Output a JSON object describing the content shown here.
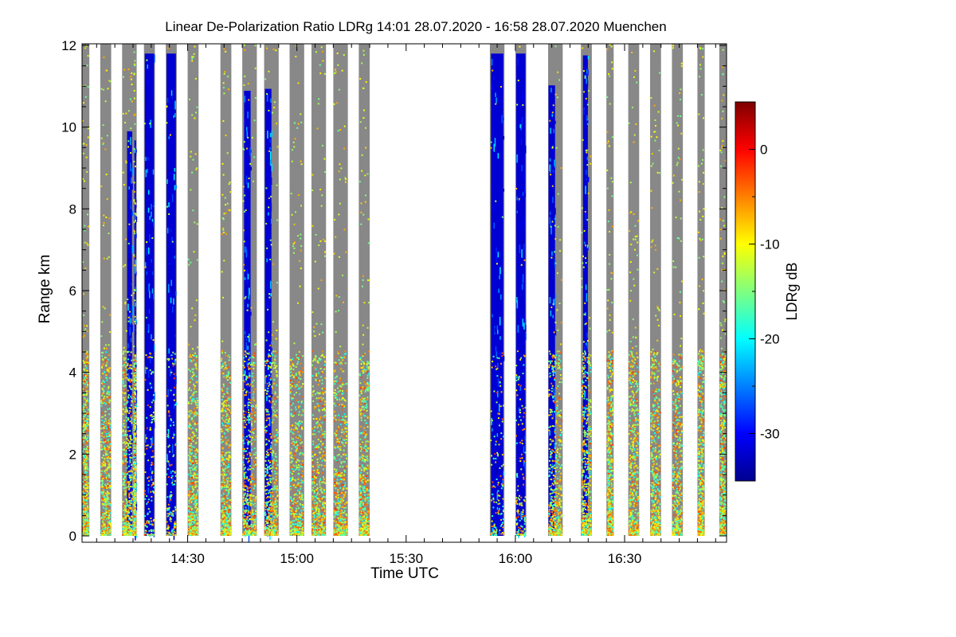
{
  "chart_data": {
    "type": "heatmap",
    "title": "Linear De-Polarization Ratio LDRg   14:01 28.07.2020 - 16:58 28.07.2020 Muenchen",
    "xlabel": "Time UTC",
    "ylabel": "Range km",
    "xlim": [
      "14:01",
      "16:58"
    ],
    "ylim": [
      0,
      12
    ],
    "x_ticks": [
      "14:30",
      "15:00",
      "15:30",
      "16:00",
      "16:30"
    ],
    "y_ticks": [
      "0",
      "2",
      "4",
      "6",
      "8",
      "10",
      "12"
    ],
    "colorbar": {
      "label": "LDRg dB",
      "range": [
        -35,
        5
      ],
      "ticks": [
        "0",
        "-10",
        "-20",
        "-30"
      ],
      "colormap": "jet"
    },
    "colors": {
      "no_signal": "#888888",
      "background": "#ffffff"
    },
    "profiles": [
      {
        "start": "14:01",
        "end": "14:03",
        "kind": "noise"
      },
      {
        "start": "14:06",
        "end": "14:09",
        "kind": "noise"
      },
      {
        "start": "14:12",
        "end": "14:15",
        "kind": "noise-cloud"
      },
      {
        "start": "14:15",
        "end": "14:16",
        "kind": "noise-cloud"
      },
      {
        "start": "14:18",
        "end": "14:21",
        "kind": "cloud"
      },
      {
        "start": "14:24",
        "end": "14:27",
        "kind": "cloud"
      },
      {
        "start": "14:30",
        "end": "14:33",
        "kind": "noise"
      },
      {
        "start": "14:39",
        "end": "14:42",
        "kind": "noise"
      },
      {
        "start": "14:45",
        "end": "14:49",
        "kind": "noise-cloud"
      },
      {
        "start": "14:51",
        "end": "14:55",
        "kind": "noise-cloud"
      },
      {
        "start": "14:58",
        "end": "15:02",
        "kind": "noise"
      },
      {
        "start": "15:04",
        "end": "15:08",
        "kind": "noise"
      },
      {
        "start": "15:10",
        "end": "15:14",
        "kind": "noise"
      },
      {
        "start": "15:17",
        "end": "15:20",
        "kind": "noise"
      },
      {
        "start": "15:53",
        "end": "15:57",
        "kind": "cloud"
      },
      {
        "start": "16:00",
        "end": "16:03",
        "kind": "cloud"
      },
      {
        "start": "16:09",
        "end": "16:13",
        "kind": "noise-cloud"
      },
      {
        "start": "16:18",
        "end": "16:21",
        "kind": "noise-cloud"
      },
      {
        "start": "16:25",
        "end": "16:27",
        "kind": "noise"
      },
      {
        "start": "16:31",
        "end": "16:34",
        "kind": "noise"
      },
      {
        "start": "16:37",
        "end": "16:40",
        "kind": "noise"
      },
      {
        "start": "16:43",
        "end": "16:46",
        "kind": "noise"
      },
      {
        "start": "16:50",
        "end": "16:52",
        "kind": "noise"
      },
      {
        "start": "16:56",
        "end": "16:58",
        "kind": "noise"
      }
    ]
  }
}
